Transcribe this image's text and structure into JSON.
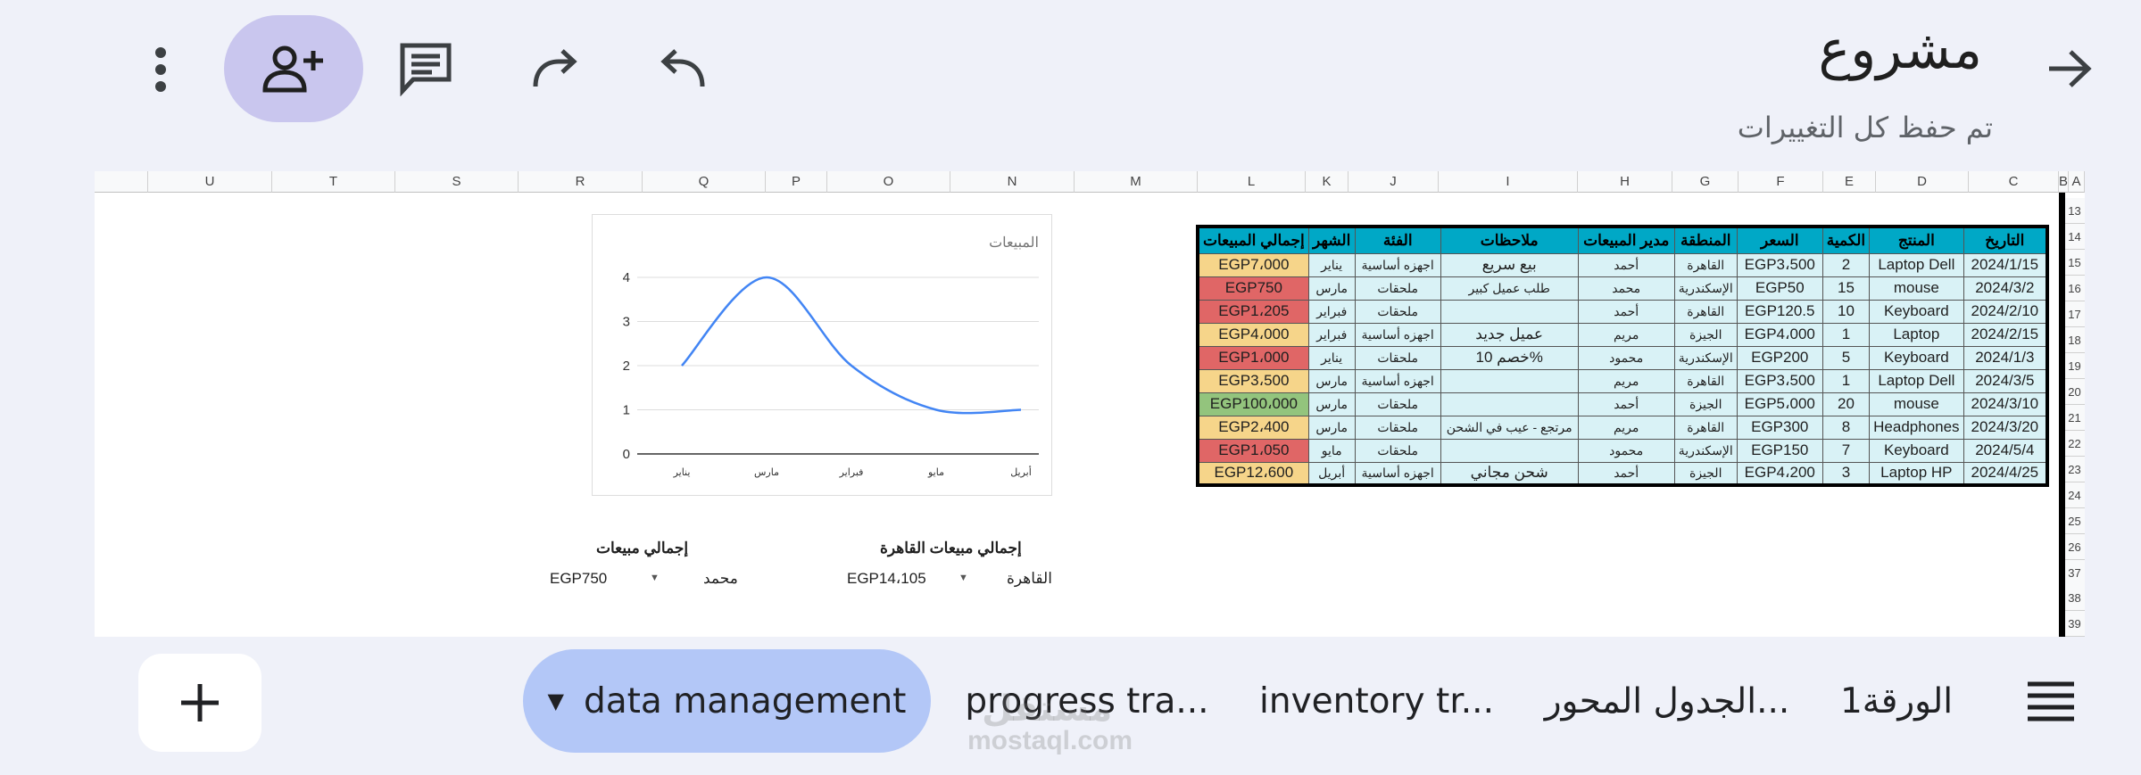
{
  "header": {
    "title": "مشروع",
    "save_status": "تم حفظ كل التغييرات",
    "icons": [
      "arrow-forward-icon",
      "more-vert-icon",
      "add-person-icon",
      "comment-icon",
      "redo-icon",
      "undo-icon"
    ]
  },
  "sheet": {
    "column_letters": [
      "U",
      "T",
      "S",
      "R",
      "Q",
      "P",
      "O",
      "N",
      "M",
      "L",
      "K",
      "J",
      "I",
      "H",
      "G",
      "F",
      "E",
      "D",
      "C",
      "B",
      "A"
    ],
    "row_numbers": [
      "13",
      "14",
      "15",
      "16",
      "17",
      "18",
      "19",
      "20",
      "21",
      "22",
      "23",
      "24",
      "25",
      "26",
      "37",
      "38",
      "39"
    ],
    "table": {
      "headers": [
        "التاريخ",
        "المنتج",
        "الكمية",
        "السعر",
        "المنطقة",
        "مدير المبيعات",
        "ملاحظات",
        "الفئة",
        "الشهر",
        "إجمالي المبيعات"
      ],
      "rows": [
        [
          "2024/1/15",
          "Laptop Dell",
          "2",
          "EGP3،500",
          "القاهرة",
          "أحمد",
          "بيع سريع",
          "اجهزه أساسية",
          "يناير",
          "EGP7،000"
        ],
        [
          "2024/3/2",
          "mouse",
          "15",
          "EGP50",
          "الإسكندرية",
          "محمد",
          "طلب عميل كبير",
          "ملحقات",
          "مارس",
          "EGP750"
        ],
        [
          "2024/2/10",
          "Keyboard",
          "10",
          "EGP120.5",
          "القاهرة",
          "أحمد",
          "",
          "ملحقات",
          "فبراير",
          "EGP1،205"
        ],
        [
          "2024/2/15",
          "Laptop",
          "1",
          "EGP4،000",
          "الجيزة",
          "مريم",
          "عميل جديد",
          "اجهزه أساسية",
          "فبراير",
          "EGP4،000"
        ],
        [
          "2024/1/3",
          "Keyboard",
          "5",
          "EGP200",
          "الإسكندرية",
          "محمود",
          "%خصم 10",
          "ملحقات",
          "يناير",
          "EGP1،000"
        ],
        [
          "2024/3/5",
          "Laptop Dell",
          "1",
          "EGP3،500",
          "القاهرة",
          "مريم",
          "",
          "اجهزه أساسية",
          "مارس",
          "EGP3،500"
        ],
        [
          "2024/3/10",
          "mouse",
          "20",
          "EGP5،000",
          "الجيزة",
          "أحمد",
          "",
          "ملحقات",
          "مارس",
          "EGP100،000"
        ],
        [
          "2024/3/20",
          "Headphones",
          "8",
          "EGP300",
          "القاهرة",
          "مريم",
          "مرتجع - عيب في الشحن",
          "ملحقات",
          "مارس",
          "EGP2،400"
        ],
        [
          "2024/5/4",
          "Keyboard",
          "7",
          "EGP150",
          "الإسكندرية",
          "محمود",
          "",
          "ملحقات",
          "مايو",
          "EGP1،050"
        ],
        [
          "2024/4/25",
          "Laptop HP",
          "3",
          "EGP4،200",
          "الجيزة",
          "أحمد",
          "شحن مجاني",
          "اجهزه أساسية",
          "أبريل",
          "EGP12،600"
        ]
      ],
      "total_colors": [
        "#f6d58a",
        "#e06666",
        "#e06666",
        "#f6d58a",
        "#e06666",
        "#f6d58a",
        "#93c47d",
        "#f6d58a",
        "#e06666",
        "#f6d58a"
      ]
    },
    "pivot1": {
      "title": "إجمالي مبيعات القاهرة",
      "key": "القاهرة",
      "value": "EGP14،105"
    },
    "pivot2": {
      "title": "إجمالي مبيعات",
      "key": "محمد",
      "value": "EGP750"
    }
  },
  "chart_data": {
    "type": "line",
    "title": "المبيعات",
    "categories": [
      "يناير",
      "مارس",
      "فبراير",
      "مايو",
      "أبريل"
    ],
    "values": [
      2,
      4,
      2,
      1,
      1
    ],
    "yticks": [
      0,
      1,
      2,
      3,
      4
    ],
    "ylim": [
      0,
      4
    ],
    "color": "#4285f4",
    "grid": true
  },
  "tabs": {
    "active": "data management",
    "items": [
      "progress tra...",
      "inventory tr...",
      "الجدول المحور...",
      "الورقة1"
    ],
    "add_icon": "plus-icon",
    "menu_icon": "sheets-list-icon"
  },
  "watermark": {
    "arabic": "مستقل",
    "latin": "mostaql.com"
  }
}
